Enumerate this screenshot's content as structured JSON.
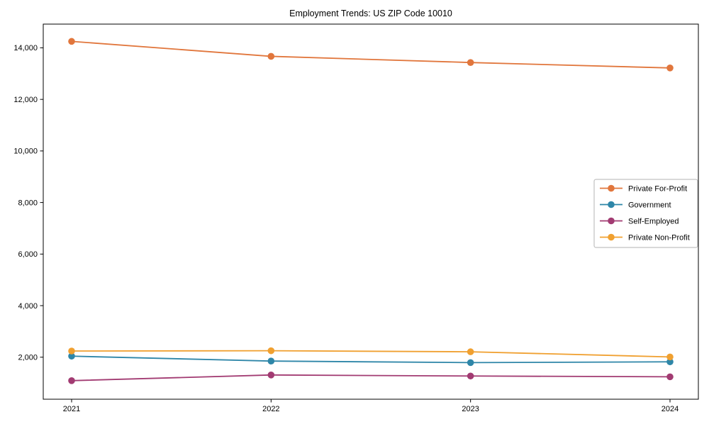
{
  "figure": {
    "title": "Employment Trends: US ZIP Code 10010"
  },
  "chart_data": {
    "type": "line",
    "title": "Employment Trends: US ZIP Code 10010",
    "xlabel": "",
    "ylabel": "",
    "categories": [
      "2021",
      "2022",
      "2023",
      "2024"
    ],
    "series": [
      {
        "name": "Private For-Profit",
        "color": "#E1763C",
        "values": [
          14250,
          13670,
          13430,
          13220
        ]
      },
      {
        "name": "Government",
        "color": "#2E86A8",
        "values": [
          2040,
          1850,
          1790,
          1820
        ]
      },
      {
        "name": "Self-Employed",
        "color": "#A23B72",
        "values": [
          1090,
          1310,
          1270,
          1240
        ]
      },
      {
        "name": "Private Non-Profit",
        "color": "#F0A030",
        "values": [
          2240,
          2250,
          2210,
          2010
        ]
      }
    ],
    "ylim": [
      370,
      14920
    ],
    "yticks": [
      2000,
      4000,
      6000,
      8000,
      10000,
      12000,
      14000
    ],
    "ytick_labels": [
      "2,000",
      "4,000",
      "6,000",
      "8,000",
      "10,000",
      "12,000",
      "14,000"
    ],
    "grid": false,
    "legend_position": "center right",
    "marker": "circle",
    "axis_color": "#000000",
    "legend_border_color": "#b3b3b3"
  }
}
